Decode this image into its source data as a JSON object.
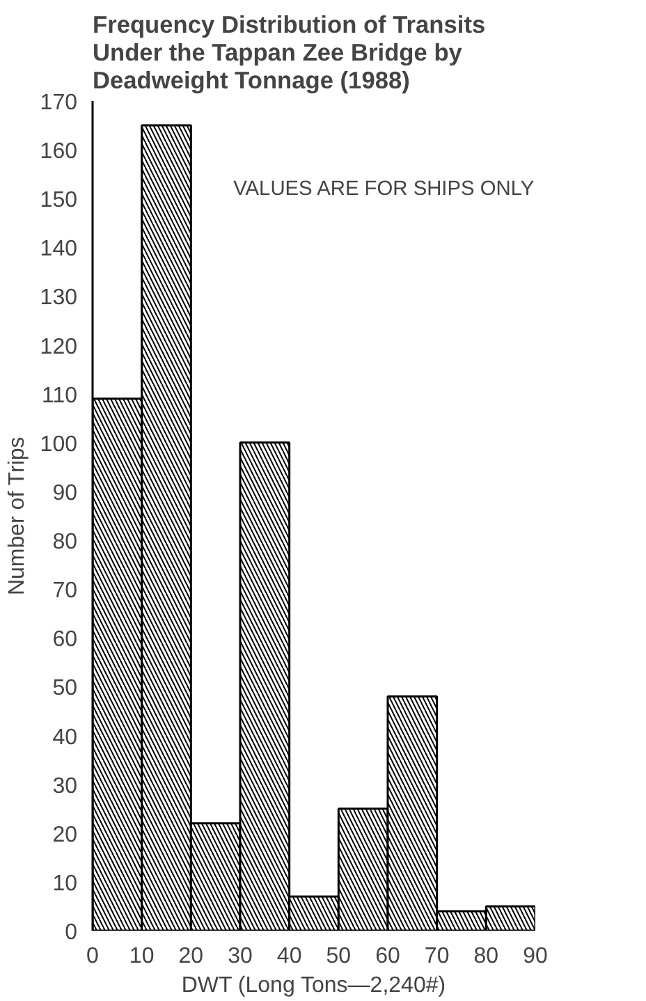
{
  "chart_data": {
    "type": "histogram",
    "title": "Frequency Distribution of Transits Under the Tappan Zee Bridge by Deadweight Tonnage (1988)",
    "xlabel": "DWT (Long Tons—2,240#)",
    "ylabel": "Number of Trips",
    "bins": [
      0,
      10,
      20,
      30,
      40,
      50,
      60,
      70,
      80,
      90
    ],
    "values": [
      109,
      165,
      22,
      100,
      7,
      25,
      48,
      4,
      5
    ],
    "color": "#000000",
    "xlim": [
      0,
      90
    ],
    "xticks": [
      0,
      10,
      20,
      30,
      40,
      50,
      60,
      70,
      80,
      90
    ],
    "ylim": [
      0,
      170
    ],
    "yticks": [
      0,
      10,
      20,
      30,
      40,
      50,
      60,
      70,
      80,
      90,
      100,
      110,
      120,
      130,
      140,
      150,
      160,
      170
    ],
    "grid": false,
    "annotations": [
      "VALUES ARE FOR SHIPS ONLY"
    ]
  }
}
